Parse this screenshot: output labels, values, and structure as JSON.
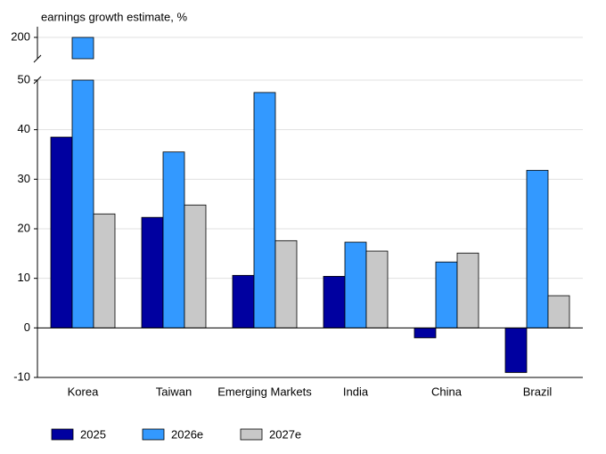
{
  "chart_data": {
    "type": "bar",
    "y_label": "earnings growth estimate, %",
    "categories": [
      "Korea",
      "Taiwan",
      "Emerging Markets",
      "India",
      "China",
      "Brazil"
    ],
    "series": [
      {
        "name": "2025",
        "color": "#0000a0",
        "values": [
          38.5,
          22.3,
          10.6,
          10.4,
          -2,
          -9
        ]
      },
      {
        "name": "2026e",
        "color": "#3399ff",
        "values": [
          200,
          35.5,
          47.5,
          17.3,
          13.3,
          31.8
        ]
      },
      {
        "name": "2027e",
        "color": "#c8c8c8",
        "values": [
          23,
          24.8,
          17.6,
          15.5,
          15.1,
          6.5
        ]
      }
    ],
    "ylim": [
      -10,
      50
    ],
    "yticks": [
      -10,
      0,
      10,
      20,
      30,
      40,
      50
    ],
    "axis_break": {
      "ylim": [
        194,
        203
      ],
      "yticks": [
        200
      ]
    },
    "grid": true,
    "legend": "bottom"
  }
}
